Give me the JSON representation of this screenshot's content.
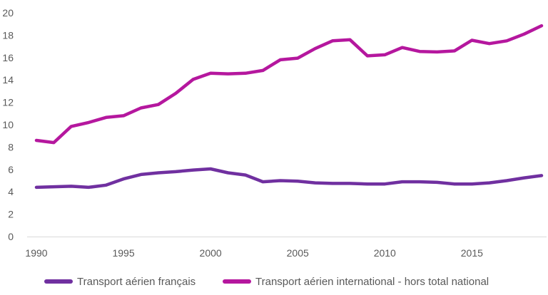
{
  "chart_data": {
    "type": "line",
    "x": [
      1990,
      1991,
      1992,
      1993,
      1994,
      1995,
      1996,
      1997,
      1998,
      1999,
      2000,
      2001,
      2002,
      2003,
      2004,
      2005,
      2006,
      2007,
      2008,
      2009,
      2010,
      2011,
      2012,
      2013,
      2014,
      2015,
      2016,
      2017,
      2018,
      2019
    ],
    "series": [
      {
        "name": "Transport aérien français",
        "color": "#7030A0",
        "values": [
          4.4,
          4.45,
          4.5,
          4.4,
          4.6,
          5.15,
          5.55,
          5.7,
          5.8,
          5.95,
          6.05,
          5.7,
          5.5,
          4.9,
          5.0,
          4.95,
          4.8,
          4.75,
          4.75,
          4.7,
          4.7,
          4.9,
          4.9,
          4.85,
          4.7,
          4.7,
          4.8,
          5.0,
          5.25,
          5.45
        ]
      },
      {
        "name": "Transport aérien international - hors total national",
        "color": "#B5179E",
        "values": [
          8.6,
          8.4,
          9.85,
          10.2,
          10.65,
          10.8,
          11.5,
          11.8,
          12.8,
          14.05,
          14.6,
          14.55,
          14.6,
          14.85,
          15.8,
          15.95,
          16.8,
          17.5,
          17.6,
          16.15,
          16.25,
          16.9,
          16.55,
          16.5,
          16.6,
          17.55,
          17.25,
          17.5,
          18.1,
          18.85
        ]
      }
    ],
    "x_ticks": [
      "1990",
      "1995",
      "2000",
      "2005",
      "2010",
      "2015"
    ],
    "y_ticks": [
      "0",
      "2",
      "4",
      "6",
      "8",
      "10",
      "12",
      "14",
      "16",
      "18",
      "20"
    ],
    "xlim": [
      1990,
      2019
    ],
    "ylim": [
      0,
      20
    ],
    "title": "",
    "xlabel": "",
    "ylabel": "",
    "grid": false,
    "legend_position": "bottom",
    "axis_color": "#D9D9D9"
  }
}
